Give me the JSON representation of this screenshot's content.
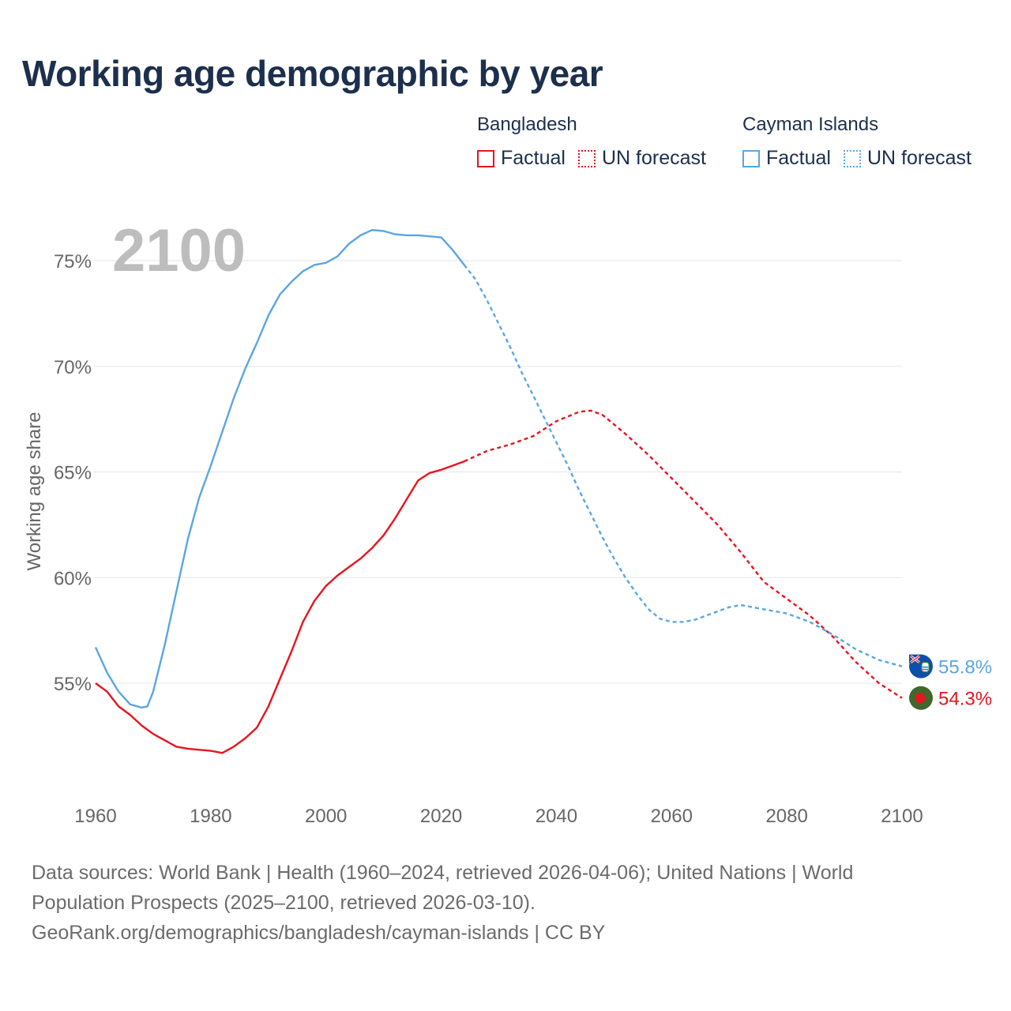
{
  "title": "Working age demographic by year",
  "legend": {
    "groups": [
      {
        "name": "Bangladesh",
        "color": "#e8141e",
        "items": [
          {
            "label": "Factual",
            "style": "solid"
          },
          {
            "label": "UN forecast",
            "style": "dotted"
          }
        ]
      },
      {
        "name": "Cayman Islands",
        "color": "#5aa6e3",
        "items": [
          {
            "label": "Factual",
            "style": "solid"
          },
          {
            "label": "UN forecast",
            "style": "dotted"
          }
        ]
      }
    ]
  },
  "year_overlay": "2100",
  "source_lines": [
    "Data sources: World Bank | Health (1960–2024, retrieved 2026-04-06); United Nations | World",
    "Population Prospects (2025–2100, retrieved 2026-03-10).",
    "GeoRank.org/demographics/bangladesh/cayman-islands | CC BY"
  ],
  "colors": {
    "bangladesh": "#e8141e",
    "cayman": "#5aa6e3",
    "grid": "#e5e5e5",
    "axis_text": "#666666",
    "title": "#1c2f4d",
    "overlay": "#bdbdbd"
  },
  "chart_data": {
    "type": "line",
    "title": "Working age demographic by year",
    "xlabel": "",
    "ylabel": "Working age share",
    "xlim": [
      1960,
      2100
    ],
    "ylim": [
      50.5,
      77.5
    ],
    "xticks": [
      1960,
      1980,
      2000,
      2020,
      2040,
      2060,
      2080,
      2100
    ],
    "yticks": [
      55,
      60,
      65,
      70,
      75
    ],
    "ytick_labels": [
      "55%",
      "60%",
      "65%",
      "70%",
      "75%"
    ],
    "series": [
      {
        "name": "Bangladesh",
        "color": "#e8141e",
        "end_label": "54.3%",
        "factual": {
          "x": [
            1960,
            1962,
            1964,
            1966,
            1968,
            1970,
            1972,
            1974,
            1976,
            1978,
            1980,
            1982,
            1984,
            1986,
            1988,
            1990,
            1992,
            1994,
            1996,
            1998,
            2000,
            2002,
            2004,
            2006,
            2008,
            2010,
            2012,
            2014,
            2016,
            2018,
            2020,
            2022,
            2024
          ],
          "y": [
            55.0,
            54.6,
            53.9,
            53.5,
            53.0,
            52.6,
            52.3,
            52.0,
            51.9,
            51.85,
            51.8,
            51.7,
            52.0,
            52.4,
            52.9,
            53.9,
            55.2,
            56.5,
            57.9,
            58.9,
            59.6,
            60.1,
            60.5,
            60.9,
            61.4,
            62.0,
            62.8,
            63.7,
            64.6,
            64.95,
            65.1,
            65.3,
            65.5
          ]
        },
        "forecast": {
          "x": [
            2024,
            2028,
            2032,
            2036,
            2040,
            2044,
            2046,
            2048,
            2052,
            2056,
            2060,
            2064,
            2068,
            2072,
            2076,
            2080,
            2084,
            2088,
            2092,
            2096,
            2100
          ],
          "y": [
            65.5,
            66.0,
            66.3,
            66.7,
            67.4,
            67.85,
            67.9,
            67.7,
            66.8,
            65.8,
            64.7,
            63.6,
            62.5,
            61.2,
            59.8,
            59.0,
            58.2,
            57.2,
            56.0,
            55.0,
            54.3
          ]
        }
      },
      {
        "name": "Cayman Islands",
        "color": "#5aa6e3",
        "end_label": "55.8%",
        "factual": {
          "x": [
            1960,
            1962,
            1964,
            1966,
            1968,
            1969,
            1970,
            1972,
            1974,
            1976,
            1978,
            1980,
            1982,
            1984,
            1986,
            1988,
            1990,
            1992,
            1994,
            1996,
            1998,
            2000,
            2002,
            2004,
            2006,
            2008,
            2010,
            2012,
            2014,
            2016,
            2018,
            2020,
            2022,
            2024
          ],
          "y": [
            56.7,
            55.5,
            54.6,
            54.0,
            53.85,
            53.9,
            54.6,
            56.8,
            59.3,
            61.8,
            63.8,
            65.3,
            66.9,
            68.5,
            69.9,
            71.1,
            72.4,
            73.4,
            74.0,
            74.5,
            74.8,
            74.9,
            75.2,
            75.8,
            76.2,
            76.45,
            76.4,
            76.25,
            76.2,
            76.2,
            76.15,
            76.1,
            75.5,
            74.8
          ]
        },
        "forecast": {
          "x": [
            2024,
            2026,
            2028,
            2030,
            2032,
            2034,
            2036,
            2038,
            2040,
            2042,
            2044,
            2046,
            2048,
            2050,
            2052,
            2054,
            2056,
            2058,
            2060,
            2062,
            2064,
            2066,
            2068,
            2070,
            2072,
            2076,
            2080,
            2084,
            2088,
            2092,
            2096,
            2100
          ],
          "y": [
            74.8,
            74.1,
            73.1,
            72.0,
            70.9,
            69.7,
            68.6,
            67.5,
            66.4,
            65.3,
            64.1,
            63.0,
            61.9,
            60.9,
            60.0,
            59.2,
            58.5,
            58.05,
            57.9,
            57.9,
            58.0,
            58.2,
            58.4,
            58.6,
            58.7,
            58.5,
            58.3,
            57.9,
            57.3,
            56.6,
            56.1,
            55.8
          ]
        }
      }
    ]
  }
}
